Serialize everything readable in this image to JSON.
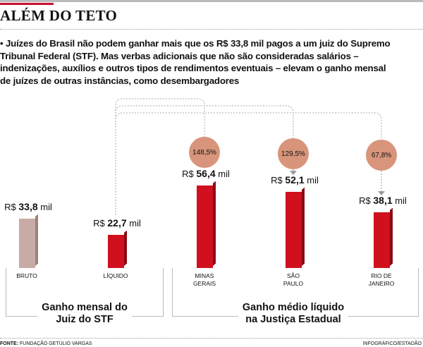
{
  "header": {
    "title": "ALÉM DO TETO"
  },
  "lead": "• Juízes do Brasil não podem ganhar mais que os R$ 33,8 mil pagos a um juiz do Supremo Tribunal Federal (STF). Mas verbas adicionais que não são consideradas salários – indenizações, auxílios e outros tipos de rendimentos eventuais – elevam o ganho mensal de juízes de outras instâncias, como desembargadores",
  "chart_data": {
    "type": "bar",
    "unit_prefix": "R$",
    "unit_suffix": "mil",
    "categories": [
      "BRUTO",
      "LÍQUIDO",
      "MINAS GERAIS",
      "SÃO PAULO",
      "RIO DE JANEIRO"
    ],
    "cat_lines": [
      [
        "BRUTO"
      ],
      [
        "LÍQUIDO"
      ],
      [
        "MINAS",
        "GERAIS"
      ],
      [
        "SÃO",
        "PAULO"
      ],
      [
        "RIO DE",
        "JANEIRO"
      ]
    ],
    "values": [
      33.8,
      22.7,
      56.4,
      52.1,
      38.1
    ],
    "value_labels": [
      "33,8",
      "22,7",
      "56,4",
      "52,1",
      "38,1"
    ],
    "pct_over_liquido": [
      null,
      null,
      "148,5%",
      "129,5%",
      "67,8%"
    ],
    "groups": [
      {
        "label_1": "Ganho mensal do",
        "label_2": "Juiz do STF"
      },
      {
        "label_1": "Ganho médio líquido",
        "label_2": "na Justiça Estadual"
      }
    ],
    "colors": {
      "bruto": "#c8aaa6",
      "liquido": "#d0101e",
      "circle": "#d8957b"
    }
  },
  "footer": {
    "source_label": "FONTE:",
    "source": "FUNDAÇÃO GETÚLIO VARGAS",
    "credit": "INFOGRÁFICO/ESTADÃO"
  }
}
